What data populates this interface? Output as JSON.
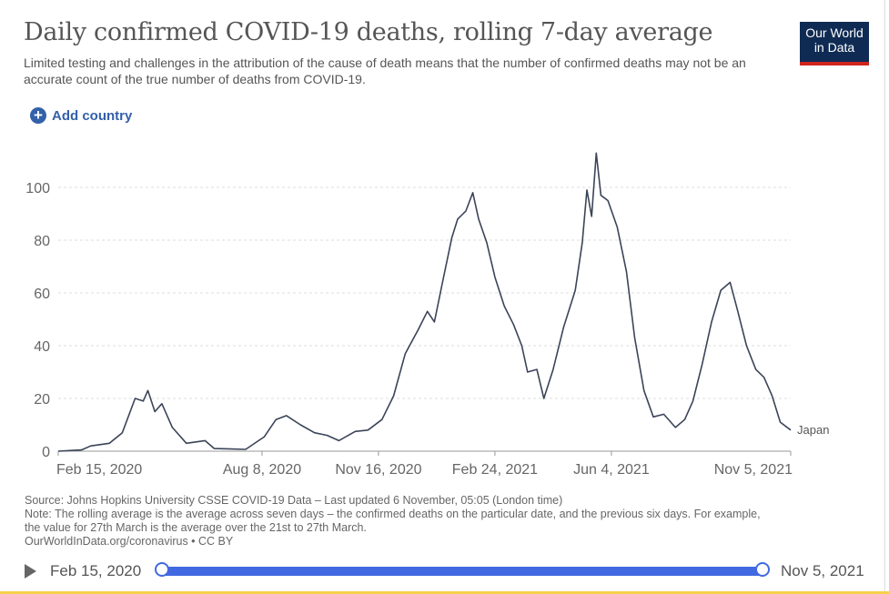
{
  "header": {
    "title": "Daily confirmed COVID-19 deaths, rolling 7-day average",
    "subtitle": "Limited testing and challenges in the attribution of the cause of death means that the number of confirmed deaths may not be an accurate count of the true number of deaths from COVID-19.",
    "logo_line1": "Our World",
    "logo_line2": "in Data"
  },
  "controls": {
    "add_country": "Add country"
  },
  "chart_data": {
    "type": "line",
    "title": "Daily confirmed COVID-19 deaths, rolling 7-day average",
    "xlabel": "",
    "ylabel": "",
    "x_unit": "days since 2020-02-15",
    "xlim": [
      0,
      629
    ],
    "ylim": [
      0,
      115
    ],
    "grid": true,
    "y_ticks": [
      0,
      20,
      40,
      60,
      80,
      100
    ],
    "x_ticks": [
      {
        "day": 0,
        "label": "Feb 15, 2020"
      },
      {
        "day": 175,
        "label": "Aug 8, 2020"
      },
      {
        "day": 275,
        "label": "Nov 16, 2020"
      },
      {
        "day": 375,
        "label": "Feb 24, 2021"
      },
      {
        "day": 475,
        "label": "Jun 4, 2021"
      },
      {
        "day": 629,
        "label": "Nov 5, 2021"
      }
    ],
    "series": [
      {
        "name": "Japan",
        "color": "#3b4458",
        "points": [
          [
            0,
            0
          ],
          [
            20,
            0.5
          ],
          [
            28,
            2
          ],
          [
            44,
            3
          ],
          [
            55,
            7
          ],
          [
            66,
            20
          ],
          [
            73,
            19
          ],
          [
            77,
            23
          ],
          [
            83,
            15
          ],
          [
            89,
            18
          ],
          [
            98,
            9
          ],
          [
            110,
            3
          ],
          [
            126,
            4
          ],
          [
            134,
            1
          ],
          [
            161,
            0.7
          ],
          [
            177,
            5.5
          ],
          [
            187,
            12
          ],
          [
            196,
            13.5
          ],
          [
            208,
            10
          ],
          [
            220,
            7
          ],
          [
            231,
            6
          ],
          [
            241,
            4
          ],
          [
            255,
            7.5
          ],
          [
            266,
            8
          ],
          [
            278,
            12
          ],
          [
            288,
            21
          ],
          [
            298,
            37
          ],
          [
            309,
            46
          ],
          [
            317,
            53
          ],
          [
            323,
            49
          ],
          [
            330,
            64
          ],
          [
            338,
            81
          ],
          [
            343,
            88
          ],
          [
            350,
            91
          ],
          [
            356,
            98
          ],
          [
            361,
            88
          ],
          [
            368,
            79
          ],
          [
            375,
            66
          ],
          [
            383,
            55
          ],
          [
            391,
            48
          ],
          [
            398,
            40
          ],
          [
            403,
            30
          ],
          [
            411,
            31
          ],
          [
            417,
            20
          ],
          [
            425,
            31
          ],
          [
            434,
            47
          ],
          [
            444,
            61
          ],
          [
            450,
            79
          ],
          [
            454,
            99
          ],
          [
            458,
            89
          ],
          [
            462,
            113
          ],
          [
            466,
            97
          ],
          [
            472,
            95
          ],
          [
            480,
            85
          ],
          [
            488,
            68
          ],
          [
            495,
            43
          ],
          [
            503,
            23
          ],
          [
            511,
            13
          ],
          [
            520,
            14
          ],
          [
            530,
            9
          ],
          [
            538,
            12
          ],
          [
            545,
            19
          ],
          [
            553,
            33
          ],
          [
            561,
            49
          ],
          [
            569,
            61
          ],
          [
            577,
            64
          ],
          [
            583,
            54
          ],
          [
            591,
            40
          ],
          [
            599,
            31
          ],
          [
            606,
            28
          ],
          [
            613,
            21
          ],
          [
            620,
            11
          ],
          [
            629,
            8
          ]
        ]
      }
    ]
  },
  "footer": {
    "source": "Source: Johns Hopkins University CSSE COVID-19 Data – Last updated 6 November, 05:05 (London time)",
    "note1": "Note: The rolling average is the average across seven days – the confirmed deaths on the particular date, and the previous six days. For example,",
    "note2": "the value for 27th March is the average over the 21st to 27th March.",
    "credit": "OurWorldInData.org/coronavirus • CC BY"
  },
  "timeline": {
    "start": "Feb 15, 2020",
    "end": "Nov 5, 2021",
    "range_fraction": [
      0,
      1
    ]
  }
}
